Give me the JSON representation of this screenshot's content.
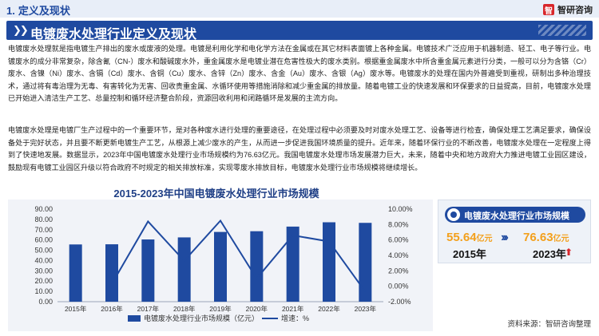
{
  "header": {
    "section_number": "1.",
    "section_title": "定义及现状",
    "brand_name": "智研咨询",
    "brand_logo_char": "智"
  },
  "page_title": "电镀废水处理行业定义及现状",
  "paragraphs": [
    "电镀废水处理就是指电镀生产排出的废水或废液的处理。电镀是利用化学和电化学方法在金属或在其它材料表面镀上各种金属。电镀技术广泛应用于机器制造、轻工、电子等行业。电镀废水的成分非常复杂，除含氰（CN-）废水和酸碱废水外，重金属废水是电镀业潜在危害性极大的废水类别。根据重金属废水中所含重金属元素进行分类，一般可以分为含铬（Cr）废水、含镍（Ni）废水、含镉（Cd）废水、含铜（Cu）废水、含锌（Zn）废水、含金（Au）废水、含银（Ag）废水等。电镀废水的处理在国内外普遍受到重视，研制出多种治理技术，通过将有毒治理为无毒、有害转化为无害、回收贵重金属、水循环使用等措施消除和减少重金属的排放量。随着电镀工业的快速发展和环保要求的日益提高，目前，电镀废水处理已开始进入清洁生产工艺、总量控制和循环经济整合阶段，资源回收利用和闭路循环是发展的主流方向。",
    "电镀废水处理是电镀厂生产过程中的一个重要环节，是对各种废水进行处理的重要途径，在处理过程中必须要及时对废水处理工艺、设备等进行检查，确保处理工艺满足要求，确保设备处于完好状态，并且要不断更新电镀生产工艺，从根源上减少废水的产生，从而进一步促进我国环境质量的提升。近年来，随着环保行业的不断改善，电镀废水处理在一定程度上得到了快速地发展。数据显示，2023年中国电镀废水处理行业市场规模约为76.63亿元。我国电镀废水处理市场发展潜力巨大，未来，随着中央和地方政府大力推进电镀工业园区建设，鼓励现有电镀工业园区升级以符合政府不时规定的相关排放标准，实现零废水排放目标，电镀废水处理行业市场规模将继续增长。"
  ],
  "chart_data": {
    "type": "bar",
    "title": "2015-2023年中国电镀废水处理行业市场规模",
    "categories": [
      "2015年",
      "2016年",
      "2017年",
      "2018年",
      "2019年",
      "2020年",
      "2021年",
      "2022年",
      "2023年"
    ],
    "series": [
      {
        "name": "电镀废水处理行业市场规模（亿元）",
        "type": "bar",
        "axis": "left",
        "color": "#1f4aa0",
        "values": [
          55.64,
          55.8,
          60.5,
          62.5,
          67.8,
          68.5,
          73.0,
          77.2,
          76.63
        ]
      },
      {
        "name": "增速：%",
        "type": "line",
        "axis": "right",
        "color": "#1f4aa0",
        "values": [
          null,
          0.3,
          8.4,
          3.3,
          8.5,
          1.0,
          6.6,
          5.8,
          -0.7
        ]
      }
    ],
    "y_left": {
      "ticks": [
        "0.00",
        "10.00",
        "20.00",
        "30.00",
        "40.00",
        "50.00",
        "60.00",
        "70.00",
        "80.00",
        "90.00"
      ],
      "ylim": [
        0,
        90
      ]
    },
    "y_right": {
      "ticks": [
        "-2.00%",
        "0.00%",
        "2.00%",
        "4.00%",
        "6.00%",
        "8.00%",
        "10.00%"
      ],
      "ylim": [
        -2,
        10
      ]
    },
    "legend_position": "bottom",
    "grid": false
  },
  "market_card": {
    "title": "电镀废水处理行业市场规模",
    "start_value": "55.64",
    "start_unit": "亿元",
    "start_year": "2015年",
    "end_value": "76.63",
    "end_unit": "亿元",
    "end_year": "2023年",
    "arrow_glyph": "›››",
    "up_glyph": "⬆"
  },
  "source": "资料来源：智研咨询整理",
  "colors": {
    "primary": "#1f4aa0",
    "accent": "#f3a01c",
    "up": "#d8262b"
  }
}
